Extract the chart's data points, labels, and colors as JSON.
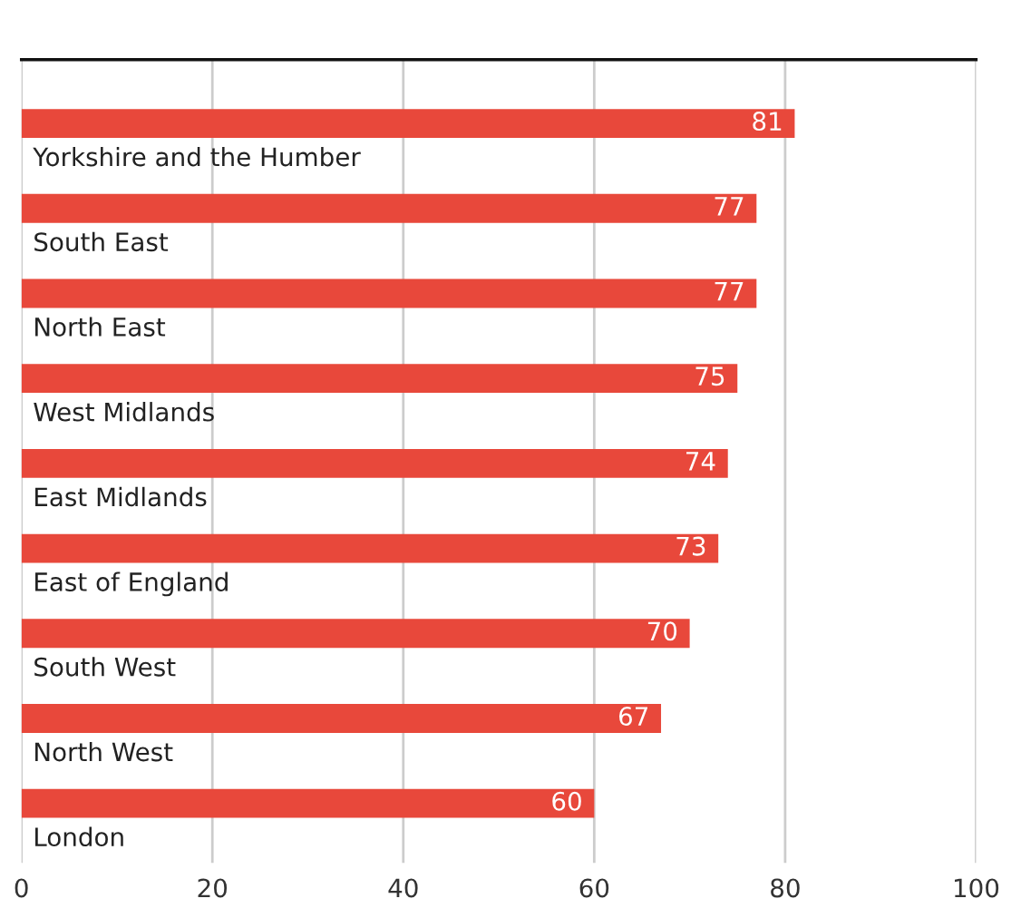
{
  "chart_data": {
    "type": "bar",
    "orientation": "horizontal",
    "categories": [
      "Yorkshire and the Humber",
      "South East",
      "North East",
      "West Midlands",
      "East Midlands",
      "East of England",
      "South West",
      "North West",
      "London"
    ],
    "values": [
      81,
      77,
      77,
      75,
      74,
      73,
      70,
      67,
      60
    ],
    "color": "#e8483b",
    "xlim": [
      0,
      100
    ],
    "xticks": [
      0,
      20,
      40,
      60,
      80,
      100
    ],
    "grid": "x",
    "data_labels": true
  }
}
